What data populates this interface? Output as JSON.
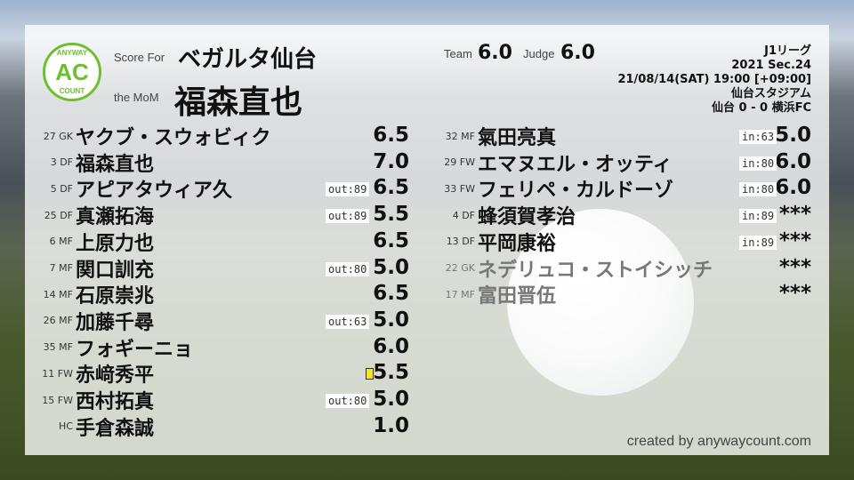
{
  "header": {
    "score_for_label": "Score For",
    "team_name": "ベガルタ仙台",
    "mom_label": "the MoM",
    "mom_name": "福森直也",
    "team_label": "Team",
    "team_score": "6.0",
    "judge_label": "Judge",
    "judge_score": "6.0"
  },
  "logo": {
    "top": "ANYWAY",
    "main": "AC",
    "bottom": "COUNT",
    "color": "#6cbf2f"
  },
  "match": {
    "league": "J1リーグ",
    "season": "2021 Sec.24",
    "datetime": "21/08/14(SAT) 19:00 [+09:00]",
    "venue": "仙台スタジアム",
    "result": "仙台 0 - 0 横浜FC"
  },
  "left_players": [
    {
      "num": "27",
      "pos": "GK",
      "name": "ヤクブ・スウォビィク",
      "score": "6.5",
      "badge": ""
    },
    {
      "num": "3",
      "pos": "DF",
      "name": "福森直也",
      "score": "7.0",
      "badge": ""
    },
    {
      "num": "5",
      "pos": "DF",
      "name": "アピアタウィア久",
      "score": "6.5",
      "badge": "out:89"
    },
    {
      "num": "25",
      "pos": "DF",
      "name": "真瀬拓海",
      "score": "5.5",
      "badge": "out:89"
    },
    {
      "num": "6",
      "pos": "MF",
      "name": "上原力也",
      "score": "6.5",
      "badge": ""
    },
    {
      "num": "7",
      "pos": "MF",
      "name": "関口訓充",
      "score": "5.0",
      "badge": "out:80"
    },
    {
      "num": "14",
      "pos": "MF",
      "name": "石原崇兆",
      "score": "6.5",
      "badge": ""
    },
    {
      "num": "26",
      "pos": "MF",
      "name": "加藤千尋",
      "score": "5.0",
      "badge": "out:63"
    },
    {
      "num": "35",
      "pos": "MF",
      "name": "フォギーニョ",
      "score": "6.0",
      "badge": ""
    },
    {
      "num": "11",
      "pos": "FW",
      "name": "赤﨑秀平",
      "score": "5.5",
      "badge": "",
      "yellow_card": true
    },
    {
      "num": "15",
      "pos": "FW",
      "name": "西村拓真",
      "score": "5.0",
      "badge": "out:80"
    },
    {
      "num": "",
      "pos": "HC",
      "name": "手倉森誠",
      "score": "1.0",
      "badge": ""
    }
  ],
  "right_players": [
    {
      "num": "32",
      "pos": "MF",
      "name": "氣田亮真",
      "score": "5.0",
      "badge": "in:63"
    },
    {
      "num": "29",
      "pos": "FW",
      "name": "エマヌエル・オッティ",
      "score": "6.0",
      "badge": "in:80"
    },
    {
      "num": "33",
      "pos": "FW",
      "name": "フェリペ・カルドーゾ",
      "score": "6.0",
      "badge": "in:80"
    },
    {
      "num": "4",
      "pos": "DF",
      "name": "蜂須賀孝治",
      "score": "***",
      "badge": "in:89"
    },
    {
      "num": "13",
      "pos": "DF",
      "name": "平岡康裕",
      "score": "***",
      "badge": "in:89"
    },
    {
      "num": "22",
      "pos": "GK",
      "name": "ネデリュコ・ストイシッチ",
      "score": "***",
      "badge": "",
      "unused": true
    },
    {
      "num": "17",
      "pos": "MF",
      "name": "富田晋伍",
      "score": "***",
      "badge": "",
      "unused": true
    }
  ],
  "footer": {
    "credit": "created by anywaycount.com"
  }
}
